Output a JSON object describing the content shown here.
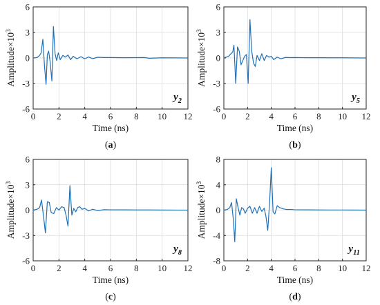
{
  "chart_data": [
    {
      "type": "line",
      "caption": "a",
      "signal": {
        "letter": "y",
        "sub": "2"
      },
      "xlabel": "Time (ns)",
      "ylabel": {
        "base": "Amplitude×10",
        "exp": "3"
      },
      "xlim": [
        0,
        12
      ],
      "ylim": [
        -6,
        6
      ],
      "xticks": [
        0,
        2,
        4,
        6,
        8,
        10,
        12
      ],
      "yticks": [
        -6,
        -3,
        0,
        3,
        6
      ],
      "grid": true,
      "color": "#1f6fb5",
      "series": [
        {
          "x": [
            0,
            0.3,
            0.5,
            0.62,
            0.75,
            0.88,
            1.0,
            1.1,
            1.2,
            1.32,
            1.45,
            1.57,
            1.7,
            1.82,
            1.95,
            2.1,
            2.3,
            2.5,
            2.7,
            2.9,
            3.1,
            3.4,
            3.7,
            4.0,
            4.3,
            4.6,
            5.0,
            5.5,
            6.0,
            7.0,
            8.0,
            8.6,
            9.0,
            10.0,
            12.0
          ],
          "y": [
            0,
            0.05,
            0.3,
            0.6,
            2.2,
            -1.0,
            -3.1,
            0.4,
            0.8,
            -0.5,
            -2.7,
            3.7,
            0.5,
            -0.3,
            0.6,
            -0.2,
            0.3,
            0.1,
            0.35,
            -0.2,
            0.2,
            -0.1,
            0.15,
            -0.1,
            0.12,
            -0.08,
            0.08,
            0.05,
            0.05,
            0.03,
            0.04,
            0.05,
            -0.03,
            0.02,
            0
          ]
        }
      ]
    },
    {
      "type": "line",
      "caption": "b",
      "signal": {
        "letter": "y",
        "sub": "5"
      },
      "xlabel": "Time (ns)",
      "ylabel": {
        "base": "Amplitude×10",
        "exp": "3"
      },
      "xlim": [
        0,
        12
      ],
      "ylim": [
        -6,
        6
      ],
      "xticks": [
        0,
        2,
        4,
        6,
        8,
        10,
        12
      ],
      "yticks": [
        -6,
        -3,
        0,
        3,
        6
      ],
      "grid": true,
      "color": "#1f6fb5",
      "series": [
        {
          "x": [
            0,
            0.4,
            0.6,
            0.75,
            0.85,
            1.0,
            1.15,
            1.3,
            1.45,
            1.6,
            1.75,
            1.9,
            2.05,
            2.2,
            2.35,
            2.5,
            2.65,
            2.8,
            3.0,
            3.2,
            3.4,
            3.6,
            3.8,
            4.0,
            4.2,
            4.5,
            4.8,
            5.2,
            5.6,
            6.0,
            7.0,
            8.0,
            9.0,
            10.0,
            12.0
          ],
          "y": [
            0,
            0.2,
            0.5,
            0.7,
            1.5,
            -3.0,
            1.3,
            0.8,
            -0.8,
            -0.3,
            0.2,
            0.4,
            -3.0,
            4.5,
            0.8,
            -0.6,
            -1.0,
            0.3,
            -0.3,
            0.5,
            -0.3,
            0.3,
            0.1,
            0.2,
            -0.2,
            0.1,
            -0.1,
            0.06,
            0.04,
            0.05,
            0.03,
            0.03,
            0.02,
            0.02,
            0
          ]
        }
      ]
    },
    {
      "type": "line",
      "caption": "c",
      "signal": {
        "letter": "y",
        "sub": "8"
      },
      "xlabel": "Time (ns)",
      "ylabel": {
        "base": "Amplitude×10",
        "exp": "3"
      },
      "xlim": [
        0,
        12
      ],
      "ylim": [
        -6,
        6
      ],
      "xticks": [
        0,
        2,
        4,
        6,
        8,
        10,
        12
      ],
      "yticks": [
        -6,
        -3,
        0,
        3,
        6
      ],
      "grid": true,
      "color": "#1f6fb5",
      "series": [
        {
          "x": [
            0,
            0.3,
            0.5,
            0.65,
            0.8,
            0.95,
            1.1,
            1.25,
            1.4,
            1.6,
            1.8,
            2.0,
            2.2,
            2.4,
            2.55,
            2.7,
            2.85,
            3.0,
            3.15,
            3.3,
            3.45,
            3.6,
            3.8,
            4.0,
            4.3,
            4.6,
            5.0,
            5.5,
            6.0,
            7.0,
            8.0,
            9.0,
            10.0,
            12.0
          ],
          "y": [
            0,
            0.1,
            0.3,
            1.2,
            -0.7,
            -2.7,
            1.0,
            0.9,
            -0.3,
            -0.4,
            0.3,
            0.0,
            0.4,
            0.3,
            -0.6,
            -1.9,
            2.9,
            -0.6,
            0.2,
            -0.2,
            0.3,
            0.4,
            0.1,
            0.2,
            -0.1,
            0.1,
            -0.05,
            0.05,
            0.03,
            0.03,
            0.02,
            0.02,
            0.01,
            0
          ]
        }
      ]
    },
    {
      "type": "line",
      "caption": "d",
      "signal": {
        "letter": "y",
        "sub": "11"
      },
      "xlabel": "Time (ns)",
      "ylabel": {
        "base": "Amplitude×10",
        "exp": "3"
      },
      "xlim": [
        0,
        12
      ],
      "ylim": [
        -8,
        8
      ],
      "xticks": [
        0,
        2,
        4,
        6,
        8,
        10,
        12
      ],
      "yticks": [
        -8,
        -4,
        0,
        4,
        8
      ],
      "grid": true,
      "color": "#1f6fb5",
      "series": [
        {
          "x": [
            0,
            0.3,
            0.5,
            0.65,
            0.8,
            0.92,
            1.05,
            1.2,
            1.35,
            1.5,
            1.65,
            1.8,
            2.0,
            2.2,
            2.4,
            2.6,
            2.8,
            3.0,
            3.2,
            3.4,
            3.55,
            3.7,
            3.85,
            4.0,
            4.15,
            4.3,
            4.5,
            4.7,
            5.0,
            5.3,
            5.7,
            6.0,
            7.0,
            8.0,
            9.0,
            10.0,
            12.0
          ],
          "y": [
            0,
            0.1,
            0.4,
            1.2,
            -1.5,
            -5.0,
            1.8,
            0.4,
            -0.8,
            0.4,
            0.2,
            -0.5,
            0.3,
            0.6,
            -0.5,
            0.4,
            -0.5,
            0.6,
            -0.2,
            0.3,
            -1.0,
            -3.2,
            1.0,
            6.7,
            -0.3,
            -0.6,
            0.7,
            0.4,
            0.2,
            0.1,
            0.1,
            0.05,
            0.04,
            0.03,
            0.02,
            0.02,
            0
          ]
        }
      ]
    }
  ]
}
